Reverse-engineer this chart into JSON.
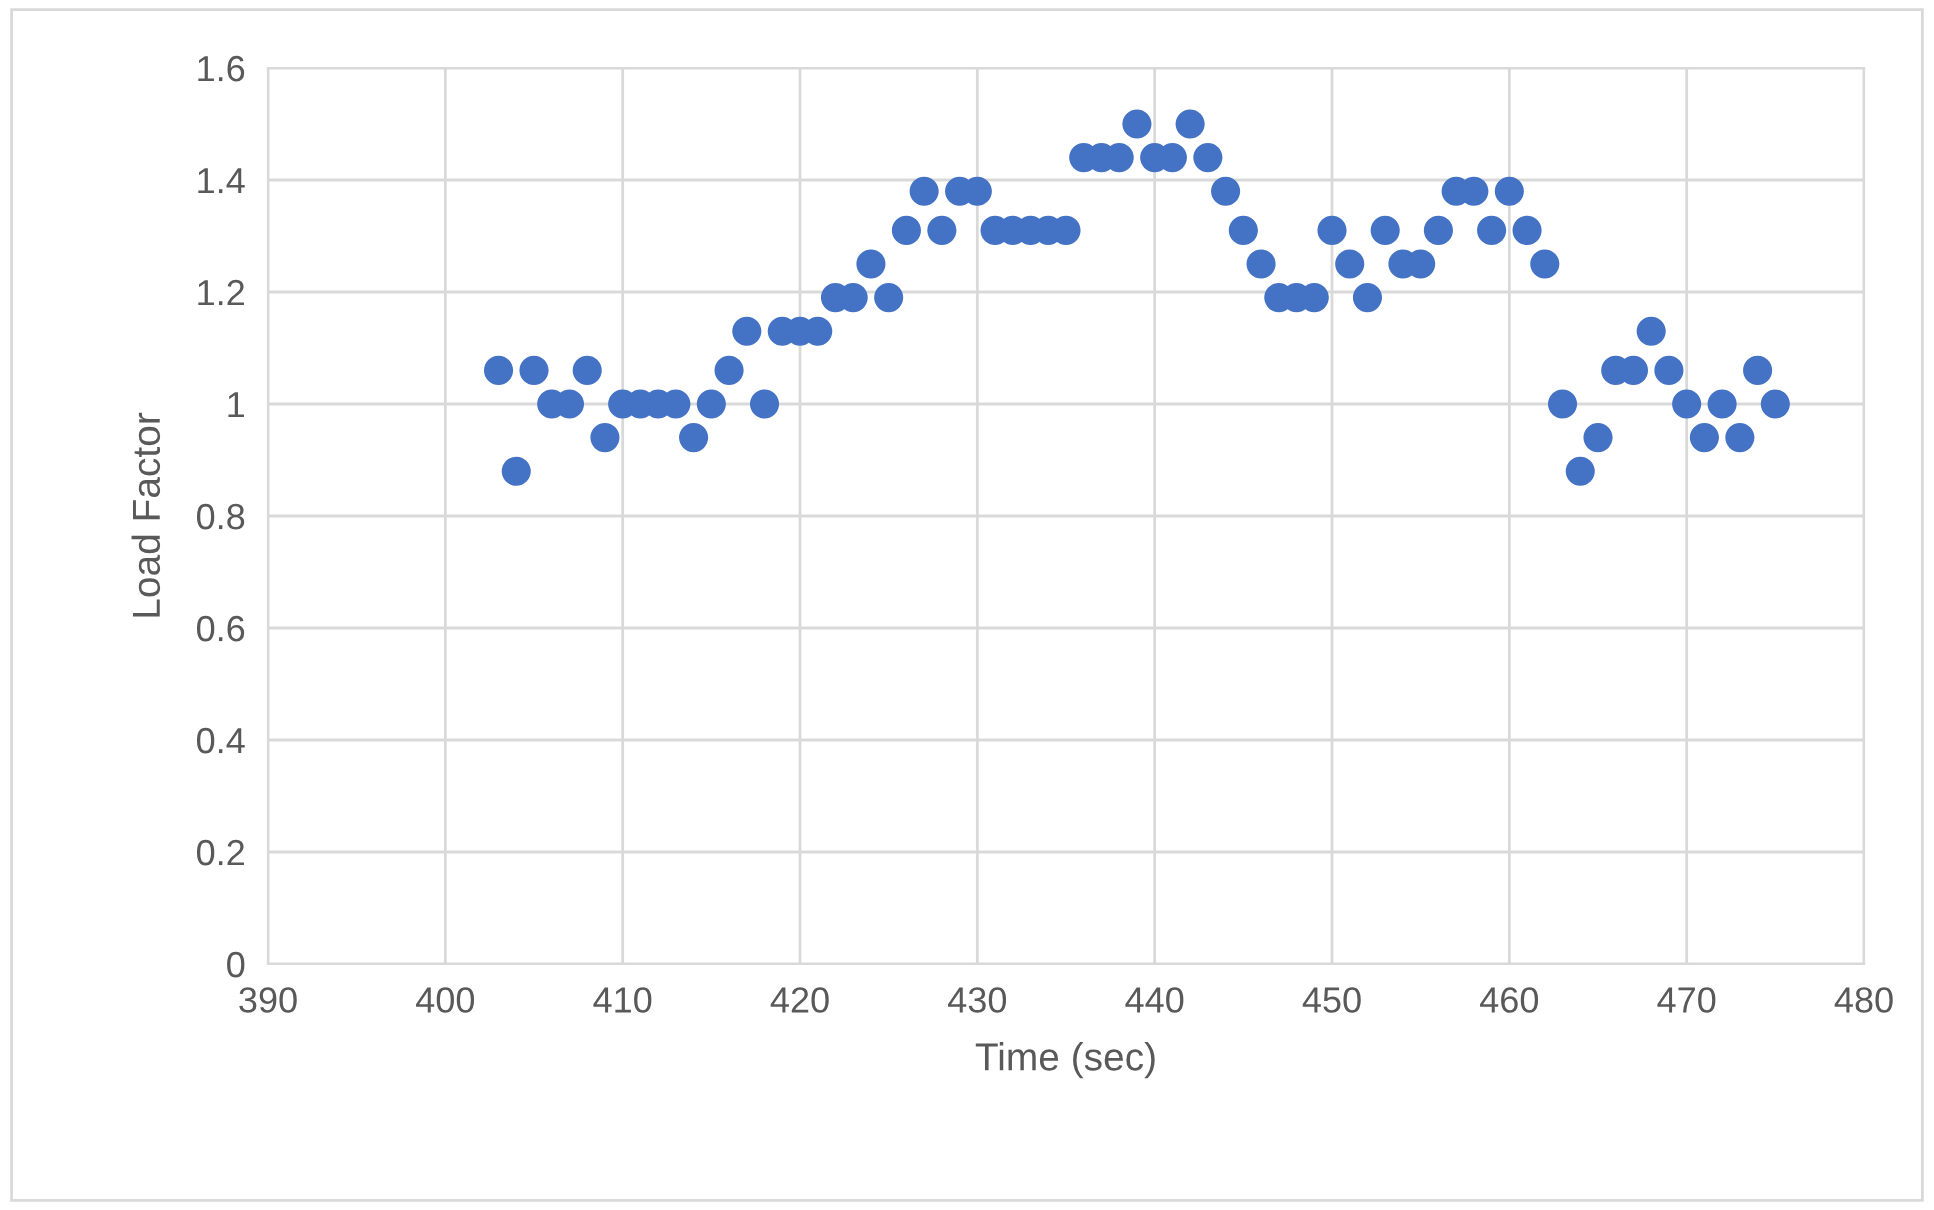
{
  "chart_data": {
    "type": "scatter",
    "xlabel": "Time (sec)",
    "ylabel": "Load Factor",
    "x": [
      403,
      404,
      405,
      406,
      407,
      408,
      409,
      410,
      411,
      412,
      413,
      414,
      415,
      416,
      417,
      418,
      419,
      420,
      421,
      422,
      423,
      424,
      425,
      426,
      427,
      428,
      429,
      430,
      431,
      432,
      433,
      434,
      435,
      436,
      437,
      438,
      439,
      440,
      441,
      442,
      443,
      444,
      445,
      446,
      447,
      448,
      449,
      450,
      451,
      452,
      453,
      454,
      455,
      456,
      457,
      458,
      459,
      460,
      461,
      462,
      463,
      464,
      465,
      466,
      467,
      468,
      469,
      470,
      471,
      472,
      473,
      474,
      475
    ],
    "values": [
      1.06,
      0.88,
      1.06,
      1,
      1,
      1.06,
      0.94,
      1,
      1,
      1,
      1,
      0.94,
      1,
      1.06,
      1.13,
      1,
      1.13,
      1.13,
      1.13,
      1.19,
      1.19,
      1.25,
      1.19,
      1.31,
      1.38,
      1.31,
      1.38,
      1.38,
      1.31,
      1.31,
      1.31,
      1.31,
      1.31,
      1.44,
      1.44,
      1.44,
      1.5,
      1.44,
      1.44,
      1.5,
      1.44,
      1.38,
      1.31,
      1.25,
      1.19,
      1.19,
      1.19,
      1.31,
      1.25,
      1.19,
      1.31,
      1.25,
      1.25,
      1.31,
      1.38,
      1.38,
      1.31,
      1.38,
      1.31,
      1.25,
      1,
      0.88,
      0.94,
      1.06,
      1.06,
      1.13,
      1.06,
      1,
      0.94,
      1,
      0.94,
      1.06,
      1
    ],
    "color": "#4472c4",
    "marker": "circle",
    "xlim": [
      390,
      480
    ],
    "xticks": [
      390,
      400,
      410,
      420,
      430,
      440,
      450,
      460,
      470,
      480
    ],
    "ylim": [
      0,
      1.6
    ],
    "yticks": [
      0,
      {
        "value": 0.2,
        "label": "0.2"
      },
      {
        "value": 0.4,
        "label": "0.4"
      },
      {
        "value": 0.6,
        "label": "0.6"
      },
      {
        "value": 0.8,
        "label": "0.8"
      },
      1,
      {
        "value": 1.2,
        "label": "1.2"
      },
      {
        "value": 1.4,
        "label": "1.4"
      },
      {
        "value": 1.6,
        "label": "1.6"
      }
    ],
    "grid": true
  }
}
